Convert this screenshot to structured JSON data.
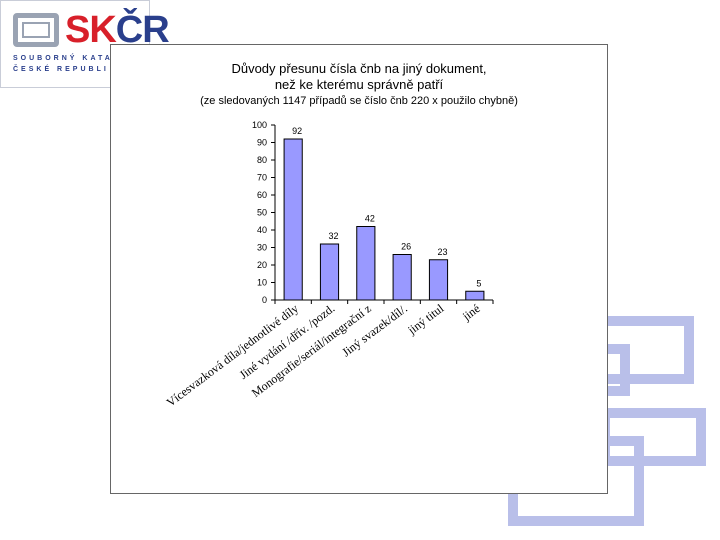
{
  "logo": {
    "mark_left": "SK",
    "mark_right": "ČR",
    "line1": "SOUBORNÝ KATA",
    "line2": "ČESKÉ REPUBLI"
  },
  "colors": {
    "bar_fill": "#9999ff",
    "bar_stroke": "#000000",
    "decor": "#b9bfe9",
    "logo_red": "#d8202a",
    "logo_blue": "#2a3f8c"
  },
  "chart_data": {
    "type": "bar",
    "title_line1": "Důvody přesunu čísla čnb na jiný dokument,",
    "title_line2": "než ke kterému správně patří",
    "subtitle": "(ze sledovaných 1147 případů se číslo čnb  220 x použilo chybně)",
    "categories": [
      "Vícesvazková díla/jednotlivé díly",
      "Jiné vydání /dřív. /pozd.",
      "Monografie/seriál/integrační z",
      "Jiný svazek/díl/.",
      "jiný titul",
      "jiné"
    ],
    "values": [
      92,
      32,
      42,
      26,
      23,
      5
    ],
    "data_labels": [
      "92",
      "32",
      "42",
      "26",
      "23",
      "5"
    ],
    "ylim": [
      0,
      100
    ],
    "yticks": [
      "0",
      "10",
      "20",
      "30",
      "40",
      "50",
      "60",
      "70",
      "80",
      "90",
      "100"
    ],
    "grid": false,
    "legend": "none"
  }
}
